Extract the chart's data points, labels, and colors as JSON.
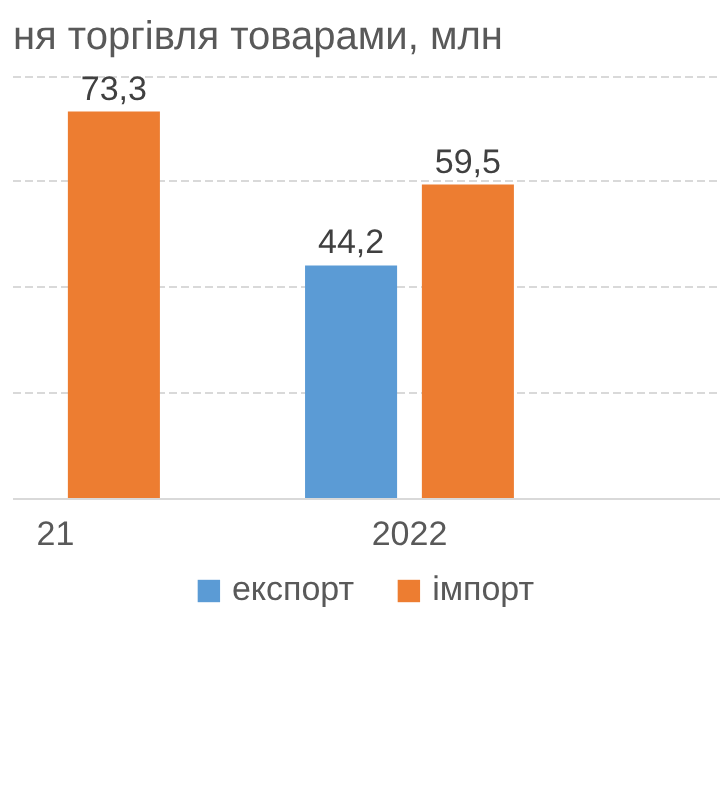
{
  "chart_data": {
    "type": "bar",
    "title": "ня торгівля товарами, млн",
    "categories": [
      "21",
      "2022"
    ],
    "series": [
      {
        "name": "експорт",
        "color": "#5b9bd5",
        "values": [
          null,
          44.2
        ],
        "value_labels": [
          null,
          "44,2"
        ]
      },
      {
        "name": "імпорт",
        "color": "#ed7d31",
        "values": [
          73.3,
          59.5
        ],
        "value_labels": [
          "73,3",
          "59,5"
        ]
      }
    ],
    "tick_labels": "x",
    "grid": "y",
    "legend": "bottom"
  }
}
